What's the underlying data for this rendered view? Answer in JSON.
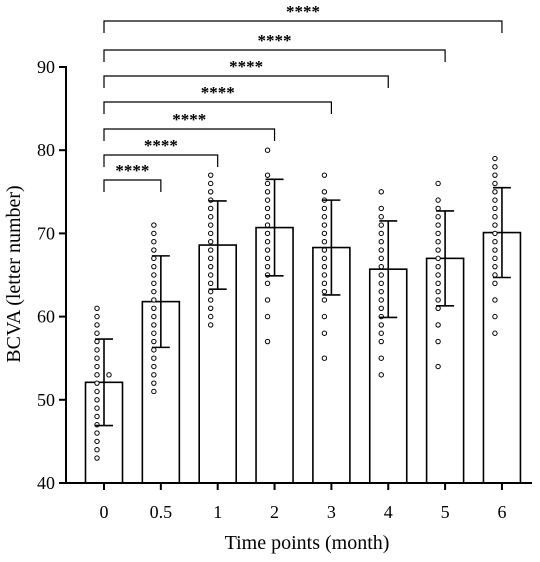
{
  "chart_data": {
    "type": "bar",
    "title": "",
    "xlabel": "Time points (month)",
    "ylabel": "BCVA (letter number)",
    "categories": [
      "0",
      "0.5",
      "1",
      "2",
      "3",
      "4",
      "5",
      "6"
    ],
    "y_ticks": [
      40,
      50,
      60,
      70,
      80,
      90
    ],
    "ylim": [
      40,
      90
    ],
    "grid": false,
    "legend": "none",
    "series": [
      {
        "values": [
          52.1,
          61.8,
          68.6,
          70.7,
          68.3,
          65.7,
          67.0,
          70.1
        ],
        "error_sd": [
          5.2,
          5.5,
          5.3,
          5.8,
          5.7,
          5.8,
          5.7,
          5.4
        ]
      }
    ],
    "points": [
      [
        61,
        60,
        59,
        58,
        57,
        56,
        55,
        54,
        53,
        53,
        52,
        51,
        50,
        49,
        48,
        47,
        46,
        45,
        44,
        43
      ],
      [
        71,
        70,
        69,
        68,
        67,
        66,
        65,
        64,
        63,
        62,
        61,
        60,
        59,
        58,
        57,
        56,
        55,
        54,
        53,
        52,
        51
      ],
      [
        77,
        76,
        75,
        74,
        73,
        72,
        71,
        70,
        69,
        68,
        67,
        66,
        65,
        64,
        63,
        62,
        61,
        60,
        59
      ],
      [
        80,
        77,
        76,
        75,
        74,
        73,
        72,
        71,
        70,
        69,
        68,
        67,
        66,
        65,
        64,
        62,
        60,
        57
      ],
      [
        77,
        75,
        74,
        73,
        72,
        71,
        70,
        69,
        68,
        67,
        66,
        65,
        64,
        63,
        62,
        60,
        58,
        55
      ],
      [
        75,
        73,
        72,
        71,
        70,
        69,
        68,
        67,
        66,
        65,
        64,
        63,
        62,
        61,
        60,
        59,
        58,
        57,
        55,
        53
      ],
      [
        76,
        74,
        73,
        72,
        71,
        70,
        69,
        68,
        67,
        66,
        65,
        64,
        63,
        62,
        61,
        59,
        57,
        54
      ],
      [
        79,
        78,
        77,
        76,
        75,
        74,
        73,
        72,
        71,
        70,
        69,
        68,
        67,
        66,
        65,
        64,
        62,
        60,
        58
      ]
    ],
    "significance": [
      {
        "from": "0",
        "to": "0.5",
        "label": "****"
      },
      {
        "from": "0",
        "to": "1",
        "label": "****"
      },
      {
        "from": "0",
        "to": "2",
        "label": "****"
      },
      {
        "from": "0",
        "to": "3",
        "label": "****"
      },
      {
        "from": "0",
        "to": "4",
        "label": "****"
      },
      {
        "from": "0",
        "to": "5",
        "label": "****"
      },
      {
        "from": "0",
        "to": "6",
        "label": "****"
      }
    ],
    "colors": {
      "bar_fill": "#ffffff",
      "stroke": "#000000",
      "point_fill": "#ffffff"
    }
  }
}
